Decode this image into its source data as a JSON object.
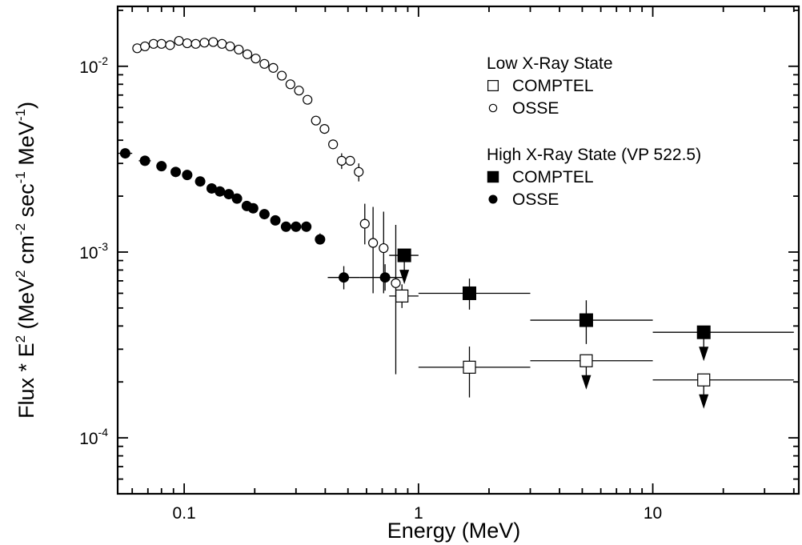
{
  "chart_data": {
    "type": "scatter",
    "xlabel": "Energy (MeV)",
    "ylabel": "Flux * E",
    "ylabel_parts": [
      "Flux * E",
      "2",
      " (MeV",
      "2",
      " cm",
      "-2",
      " sec",
      "-1",
      " MeV",
      "-1",
      ")"
    ],
    "x_scale": "log",
    "y_scale": "log",
    "xlim": [
      0.052,
      42
    ],
    "ylim": [
      5e-05,
      0.021
    ],
    "x_ticks": [
      {
        "value": 0.1,
        "label": "0.1"
      },
      {
        "value": 1,
        "label": "1"
      },
      {
        "value": 10,
        "label": "10"
      }
    ],
    "y_ticks": [
      {
        "value": 0.0001,
        "base": "10",
        "exp": "-4"
      },
      {
        "value": 0.001,
        "base": "10",
        "exp": "-3"
      },
      {
        "value": 0.01,
        "base": "10",
        "exp": "-2"
      }
    ],
    "legend": {
      "placement": "top-right",
      "groups": [
        {
          "title": "Low X-Ray State",
          "entries": [
            {
              "label": "COMPTEL",
              "marker": "open-square"
            },
            {
              "label": "OSSE",
              "marker": "open-circle"
            }
          ]
        },
        {
          "title": "High X-Ray State (VP 522.5)",
          "entries": [
            {
              "label": "COMPTEL",
              "marker": "filled-square"
            },
            {
              "label": "OSSE",
              "marker": "filled-circle"
            }
          ]
        }
      ]
    },
    "series": [
      {
        "marker": "open-circle",
        "points": [
          {
            "x": 0.063,
            "y": 0.0125
          },
          {
            "x": 0.068,
            "y": 0.0128
          },
          {
            "x": 0.074,
            "y": 0.0132
          },
          {
            "x": 0.08,
            "y": 0.0132
          },
          {
            "x": 0.087,
            "y": 0.013
          },
          {
            "x": 0.095,
            "y": 0.0137
          },
          {
            "x": 0.103,
            "y": 0.0133
          },
          {
            "x": 0.112,
            "y": 0.0132
          },
          {
            "x": 0.122,
            "y": 0.0134
          },
          {
            "x": 0.133,
            "y": 0.0135
          },
          {
            "x": 0.145,
            "y": 0.0132
          },
          {
            "x": 0.157,
            "y": 0.0128
          },
          {
            "x": 0.171,
            "y": 0.0123
          },
          {
            "x": 0.186,
            "y": 0.0116
          },
          {
            "x": 0.202,
            "y": 0.011
          },
          {
            "x": 0.22,
            "y": 0.0103
          },
          {
            "x": 0.24,
            "y": 0.0098
          },
          {
            "x": 0.261,
            "y": 0.0089
          },
          {
            "x": 0.284,
            "y": 0.008
          },
          {
            "x": 0.309,
            "y": 0.0074
          },
          {
            "x": 0.336,
            "y": 0.0066
          },
          {
            "x": 0.365,
            "y": 0.0051
          },
          {
            "x": 0.397,
            "y": 0.0046
          },
          {
            "x": 0.432,
            "y": 0.0038
          },
          {
            "x": 0.47,
            "y": 0.0031,
            "yerr": [
              0.0028,
              0.0034
            ]
          },
          {
            "x": 0.511,
            "y": 0.0031
          },
          {
            "x": 0.556,
            "y": 0.0027,
            "yerr": [
              0.0024,
              0.003
            ]
          },
          {
            "x": 0.59,
            "y": 0.00142,
            "yerr": [
              0.0011,
              0.00182
            ]
          },
          {
            "x": 0.64,
            "y": 0.00112,
            "yerr": [
              0.0006,
              0.00175
            ]
          },
          {
            "x": 0.71,
            "y": 0.00105,
            "yerr": [
              0.0006,
              0.00165
            ]
          },
          {
            "x": 0.8,
            "y": 0.00068,
            "yerr": [
              0.00022,
              0.0014
            ]
          }
        ]
      },
      {
        "marker": "filled-circle",
        "points": [
          {
            "x": 0.056,
            "y": 0.0034,
            "xerr": [
              0.052,
              0.06
            ]
          },
          {
            "x": 0.068,
            "y": 0.0031,
            "xerr": [
              0.064,
              0.072
            ]
          },
          {
            "x": 0.08,
            "y": 0.0029
          },
          {
            "x": 0.092,
            "y": 0.0027
          },
          {
            "x": 0.103,
            "y": 0.0026
          },
          {
            "x": 0.117,
            "y": 0.0024
          },
          {
            "x": 0.131,
            "y": 0.0022
          },
          {
            "x": 0.142,
            "y": 0.00212
          },
          {
            "x": 0.155,
            "y": 0.00205
          },
          {
            "x": 0.168,
            "y": 0.00194
          },
          {
            "x": 0.185,
            "y": 0.00177
          },
          {
            "x": 0.197,
            "y": 0.00172
          },
          {
            "x": 0.22,
            "y": 0.0016
          },
          {
            "x": 0.245,
            "y": 0.00148
          },
          {
            "x": 0.272,
            "y": 0.00137
          },
          {
            "x": 0.3,
            "y": 0.00137
          },
          {
            "x": 0.332,
            "y": 0.00137
          },
          {
            "x": 0.38,
            "y": 0.00117,
            "xerr": [
              0.365,
              0.395
            ],
            "yerr": [
              0.0011,
              0.00126
            ]
          },
          {
            "x": 0.48,
            "y": 0.00073,
            "xerr": [
              0.41,
              0.56
            ],
            "yerr": [
              0.00063,
              0.00084
            ]
          },
          {
            "x": 0.72,
            "y": 0.00073,
            "xerr": [
              0.56,
              0.88
            ],
            "yerr": [
              0.00062,
              0.00086
            ]
          }
        ]
      },
      {
        "marker": "open-square",
        "points": [
          {
            "x": 0.85,
            "y": 0.00058,
            "xerr": [
              0.75,
              1.0
            ],
            "yerr": [
              0.0005,
              0.00067
            ]
          },
          {
            "x": 1.65,
            "y": 0.00024,
            "xerr": [
              1.0,
              3.0
            ],
            "yerr": [
              0.000165,
              0.00031
            ]
          },
          {
            "x": 5.2,
            "y": 0.00026,
            "xerr": [
              3.0,
              10.0
            ],
            "upper_limit": true
          },
          {
            "x": 16.5,
            "y": 0.000205,
            "xerr": [
              10.0,
              40.0
            ],
            "upper_limit": true
          }
        ]
      },
      {
        "marker": "filled-square",
        "points": [
          {
            "x": 0.87,
            "y": 0.00096,
            "xerr": [
              0.75,
              1.0
            ],
            "upper_limit": true
          },
          {
            "x": 1.65,
            "y": 0.0006,
            "xerr": [
              1.0,
              3.0
            ],
            "yerr": [
              0.00049,
              0.00072
            ]
          },
          {
            "x": 5.2,
            "y": 0.00043,
            "xerr": [
              3.0,
              10.0
            ],
            "yerr": [
              0.00032,
              0.00055
            ]
          },
          {
            "x": 16.5,
            "y": 0.00037,
            "xerr": [
              10.0,
              40.0
            ],
            "upper_limit": true
          }
        ]
      }
    ]
  }
}
